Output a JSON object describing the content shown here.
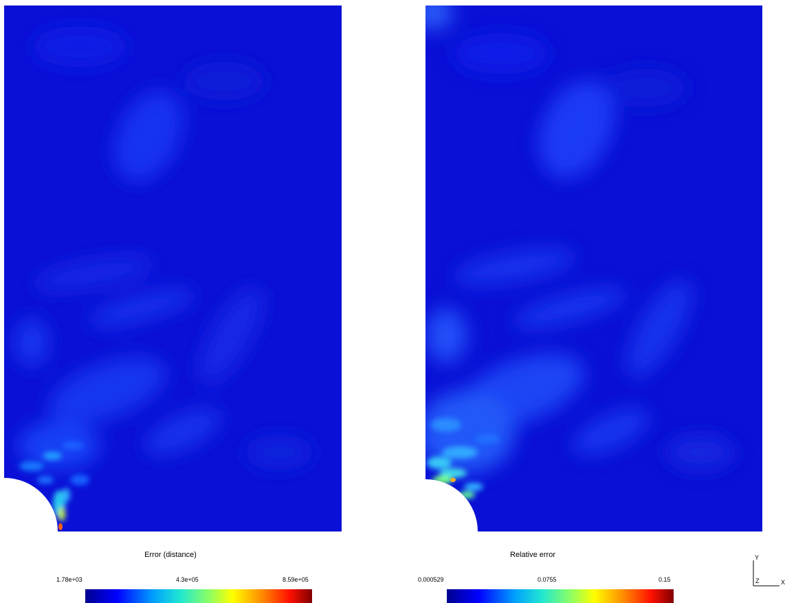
{
  "left_panel": {
    "colorbar": {
      "title": "Error (distance)",
      "min_label": "1.78e+03",
      "mid_label": "4.3e+05",
      "max_label": "8.59e+05"
    }
  },
  "right_panel": {
    "colorbar": {
      "title": "Relative error",
      "min_label": "0.000529",
      "mid_label": "0.0755",
      "max_label": "0.15"
    }
  },
  "axes_triad": {
    "y_label": "Y",
    "z_label": "Z",
    "x_label": "X"
  },
  "colors": {
    "field_base": "#0a10d6",
    "colormap": "jet"
  }
}
